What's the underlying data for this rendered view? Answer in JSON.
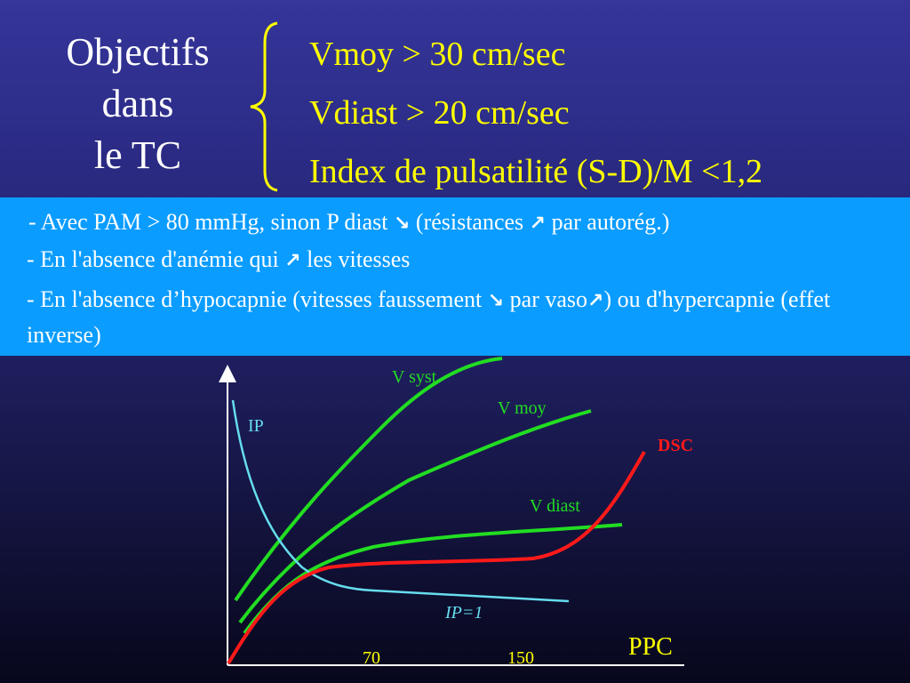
{
  "title": {
    "line1": "Objectifs",
    "line2": "dans",
    "line3": "le TC"
  },
  "targets": [
    "Vmoy > 30 cm/sec",
    "Vdiast > 20 cm/sec",
    "Index de pulsatilité (S-D)/M <1,2"
  ],
  "notes": {
    "line1": {
      "a": "- Avec  PAM > 80 mmHg, sinon P diast ",
      "b": " (résistances ",
      "c": " par autorég.)"
    },
    "line2": {
      "a": "- En l'absence d'anémie qui ",
      "b": " les vitesses"
    },
    "line3": {
      "a": "- En l'absence d’hypocapnie (vitesses faussement ",
      "b": " par vaso",
      "c": ") ou d'hypercapnie (effet inverse)"
    },
    "arrow_up": "↗",
    "arrow_down": "↘"
  },
  "colors": {
    "background": "#2a2a80",
    "band": "#0a9cff",
    "title": "#ffffff",
    "targets": "#ffff00",
    "velocity_curves": "#22dd22",
    "ip_curve": "#66ddee",
    "dsc_curve": "#ff1a1a"
  },
  "chart_data": {
    "type": "line",
    "xlabel": "PPC",
    "x_ticks": [
      "70",
      "150"
    ],
    "series": [
      {
        "name": "V syst"
      },
      {
        "name": "V moy"
      },
      {
        "name": "V diast"
      },
      {
        "name": "IP"
      },
      {
        "name": "DSC"
      }
    ],
    "annotation": "IP=1"
  }
}
